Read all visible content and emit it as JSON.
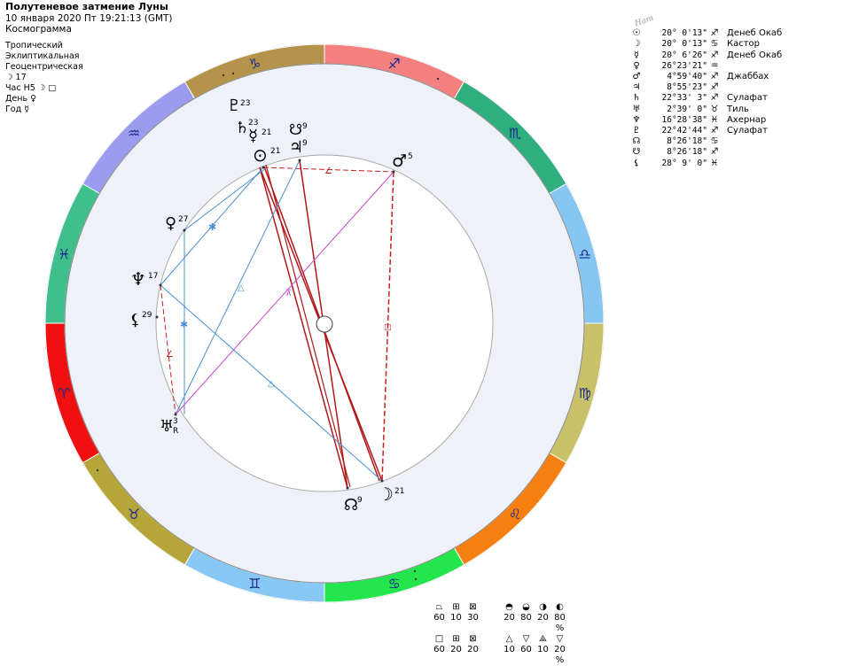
{
  "header": {
    "title": "Полутеневое затмение Луны",
    "datetime": "10 января 2020  Пт  19:21:13 (GMT)",
    "kind": "Космограмма",
    "zodiac": "Тропический",
    "coords": "Эклиптикальная",
    "center": "Геоцентрическая",
    "moon_day": "☽  17",
    "hour": "Час Н5  ☽ □",
    "day": "День  ♀",
    "year": "Год  ☿"
  },
  "table": {
    "label": "Нат",
    "rows": [
      {
        "glyph": "☉",
        "pos": "20° 0'13\"",
        "sign": "♐",
        "star": "Денеб Окаб"
      },
      {
        "glyph": "☽",
        "pos": "20° 0'13\"",
        "sign": "♋",
        "star": "Кастор"
      },
      {
        "glyph": "☿",
        "pos": "20° 6'26\"",
        "sign": "♐",
        "star": "Денеб Окаб"
      },
      {
        "glyph": "♀",
        "pos": "26°23'21\"",
        "sign": "♒",
        "star": ""
      },
      {
        "glyph": "♂",
        "pos": "4°59'40\"",
        "sign": "♐",
        "star": "Джаббах"
      },
      {
        "glyph": "♃",
        "pos": "8°55'23\"",
        "sign": "♐",
        "star": ""
      },
      {
        "glyph": "♄",
        "pos": "22°33' 3\"",
        "sign": "♐",
        "star": "Сулафат"
      },
      {
        "glyph": "♅",
        "pos": "2°39' 0\"",
        "sign": "♉",
        "star": "Тиль"
      },
      {
        "glyph": "♆",
        "pos": "16°28'38\"",
        "sign": "♓",
        "star": "Ахернар"
      },
      {
        "glyph": "♇",
        "pos": "22°42'44\"",
        "sign": "♐",
        "star": "Сулафат"
      },
      {
        "glyph": "☊",
        "pos": "8°26'18\"",
        "sign": "♋",
        "star": ""
      },
      {
        "glyph": "☋",
        "pos": "8°26'18\"",
        "sign": "♐",
        "star": ""
      },
      {
        "glyph": "⚸",
        "pos": "28° 9' 0\"",
        "sign": "♓",
        "star": ""
      }
    ]
  },
  "stats": {
    "row1_glyphs": [
      "⏢",
      "⊞",
      "⊠",
      "",
      "◓",
      "◒",
      "◑",
      "◐"
    ],
    "row1_vals": [
      "60",
      "10",
      "30",
      "",
      "20",
      "80",
      "20",
      "80 %"
    ],
    "row2_glyphs": [
      "□",
      "⊞",
      "⊠",
      "",
      "△",
      "▽",
      "⟁",
      "▽"
    ],
    "row2_vals": [
      "60",
      "20",
      "20",
      "",
      "10",
      "60",
      "10",
      "20 %"
    ]
  },
  "wheel": {
    "signs": [
      {
        "glyph": "♑",
        "color": "#b5934a"
      },
      {
        "glyph": "♐",
        "color": "#f48080"
      },
      {
        "glyph": "♏",
        "color": "#2fae7e"
      },
      {
        "glyph": "♎",
        "color": "#86c6f0"
      },
      {
        "glyph": "♍",
        "color": "#c9c06a"
      },
      {
        "glyph": "♌",
        "color": "#f57f10"
      },
      {
        "glyph": "♋",
        "color": "#22e64c"
      },
      {
        "glyph": "♊",
        "color": "#89c8f4"
      },
      {
        "glyph": "♉",
        "color": "#b6a53a"
      },
      {
        "glyph": "♈",
        "color": "#f01010"
      },
      {
        "glyph": "♓",
        "color": "#3fbf8c"
      },
      {
        "glyph": "♒",
        "color": "#9b9bf0"
      }
    ],
    "planets": [
      {
        "id": "pluto",
        "glyph": "♇",
        "label": "23"
      },
      {
        "id": "saturn",
        "glyph": "♄",
        "label": "23"
      },
      {
        "id": "mercury",
        "glyph": "☿",
        "label": "21"
      },
      {
        "id": "sun",
        "glyph": "⊙",
        "label": "21"
      },
      {
        "id": "southnode",
        "glyph": "☋",
        "label": "9"
      },
      {
        "id": "jupiter",
        "glyph": "♃",
        "label": "9"
      },
      {
        "id": "mars",
        "glyph": "♂",
        "label": "5"
      },
      {
        "id": "venus",
        "glyph": "♀",
        "label": "27"
      },
      {
        "id": "neptune",
        "glyph": "♆",
        "label": "17"
      },
      {
        "id": "lilith",
        "glyph": "⚸",
        "label": "29"
      },
      {
        "id": "uranus",
        "glyph": "♅",
        "label": "3"
      },
      {
        "id": "uranus_r",
        "glyph": "",
        "label": "R"
      },
      {
        "id": "northnode",
        "glyph": "☊",
        "label": "9"
      },
      {
        "id": "moon",
        "glyph": "☽",
        "label": "21"
      }
    ]
  }
}
